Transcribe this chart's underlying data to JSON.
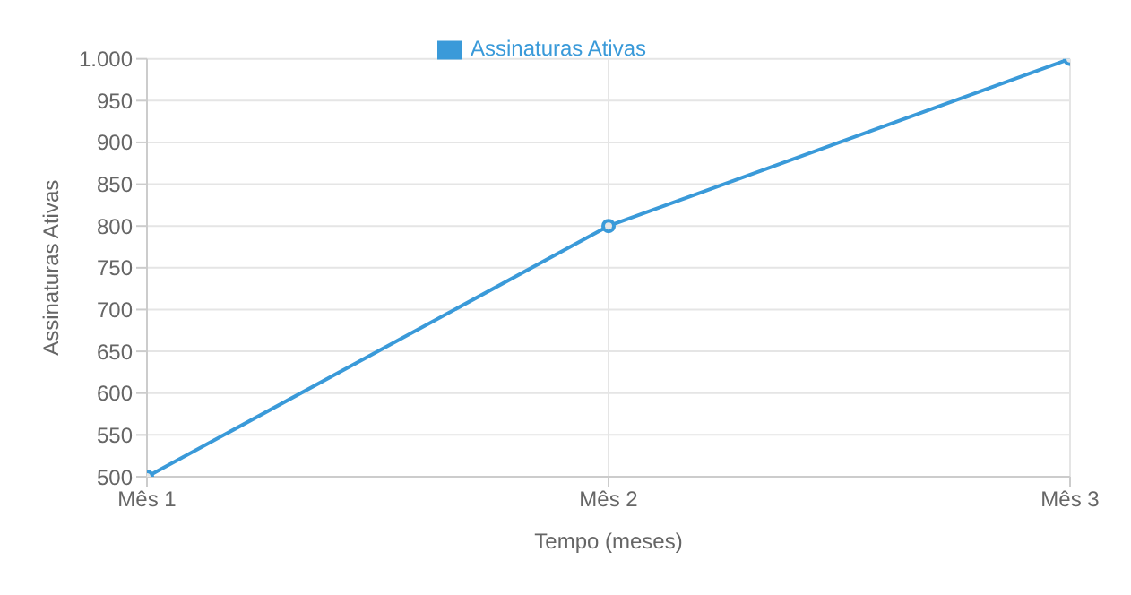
{
  "chart_data": {
    "type": "line",
    "xlabel": "Tempo (meses)",
    "ylabel": "Assinaturas Ativas",
    "categories": [
      "Mês 1",
      "Mês 2",
      "Mês 3"
    ],
    "series": [
      {
        "name": "Assinaturas Ativas",
        "color": "#3a9ad9",
        "values": [
          500,
          800,
          1000
        ]
      }
    ],
    "ylim": [
      500,
      1000
    ],
    "yticks": [
      500,
      550,
      600,
      650,
      700,
      750,
      800,
      850,
      900,
      950,
      {
        "value": 1000,
        "label": "1.000"
      }
    ],
    "grid": true,
    "legend": "top",
    "marker": "circle",
    "line_style": "solid"
  }
}
